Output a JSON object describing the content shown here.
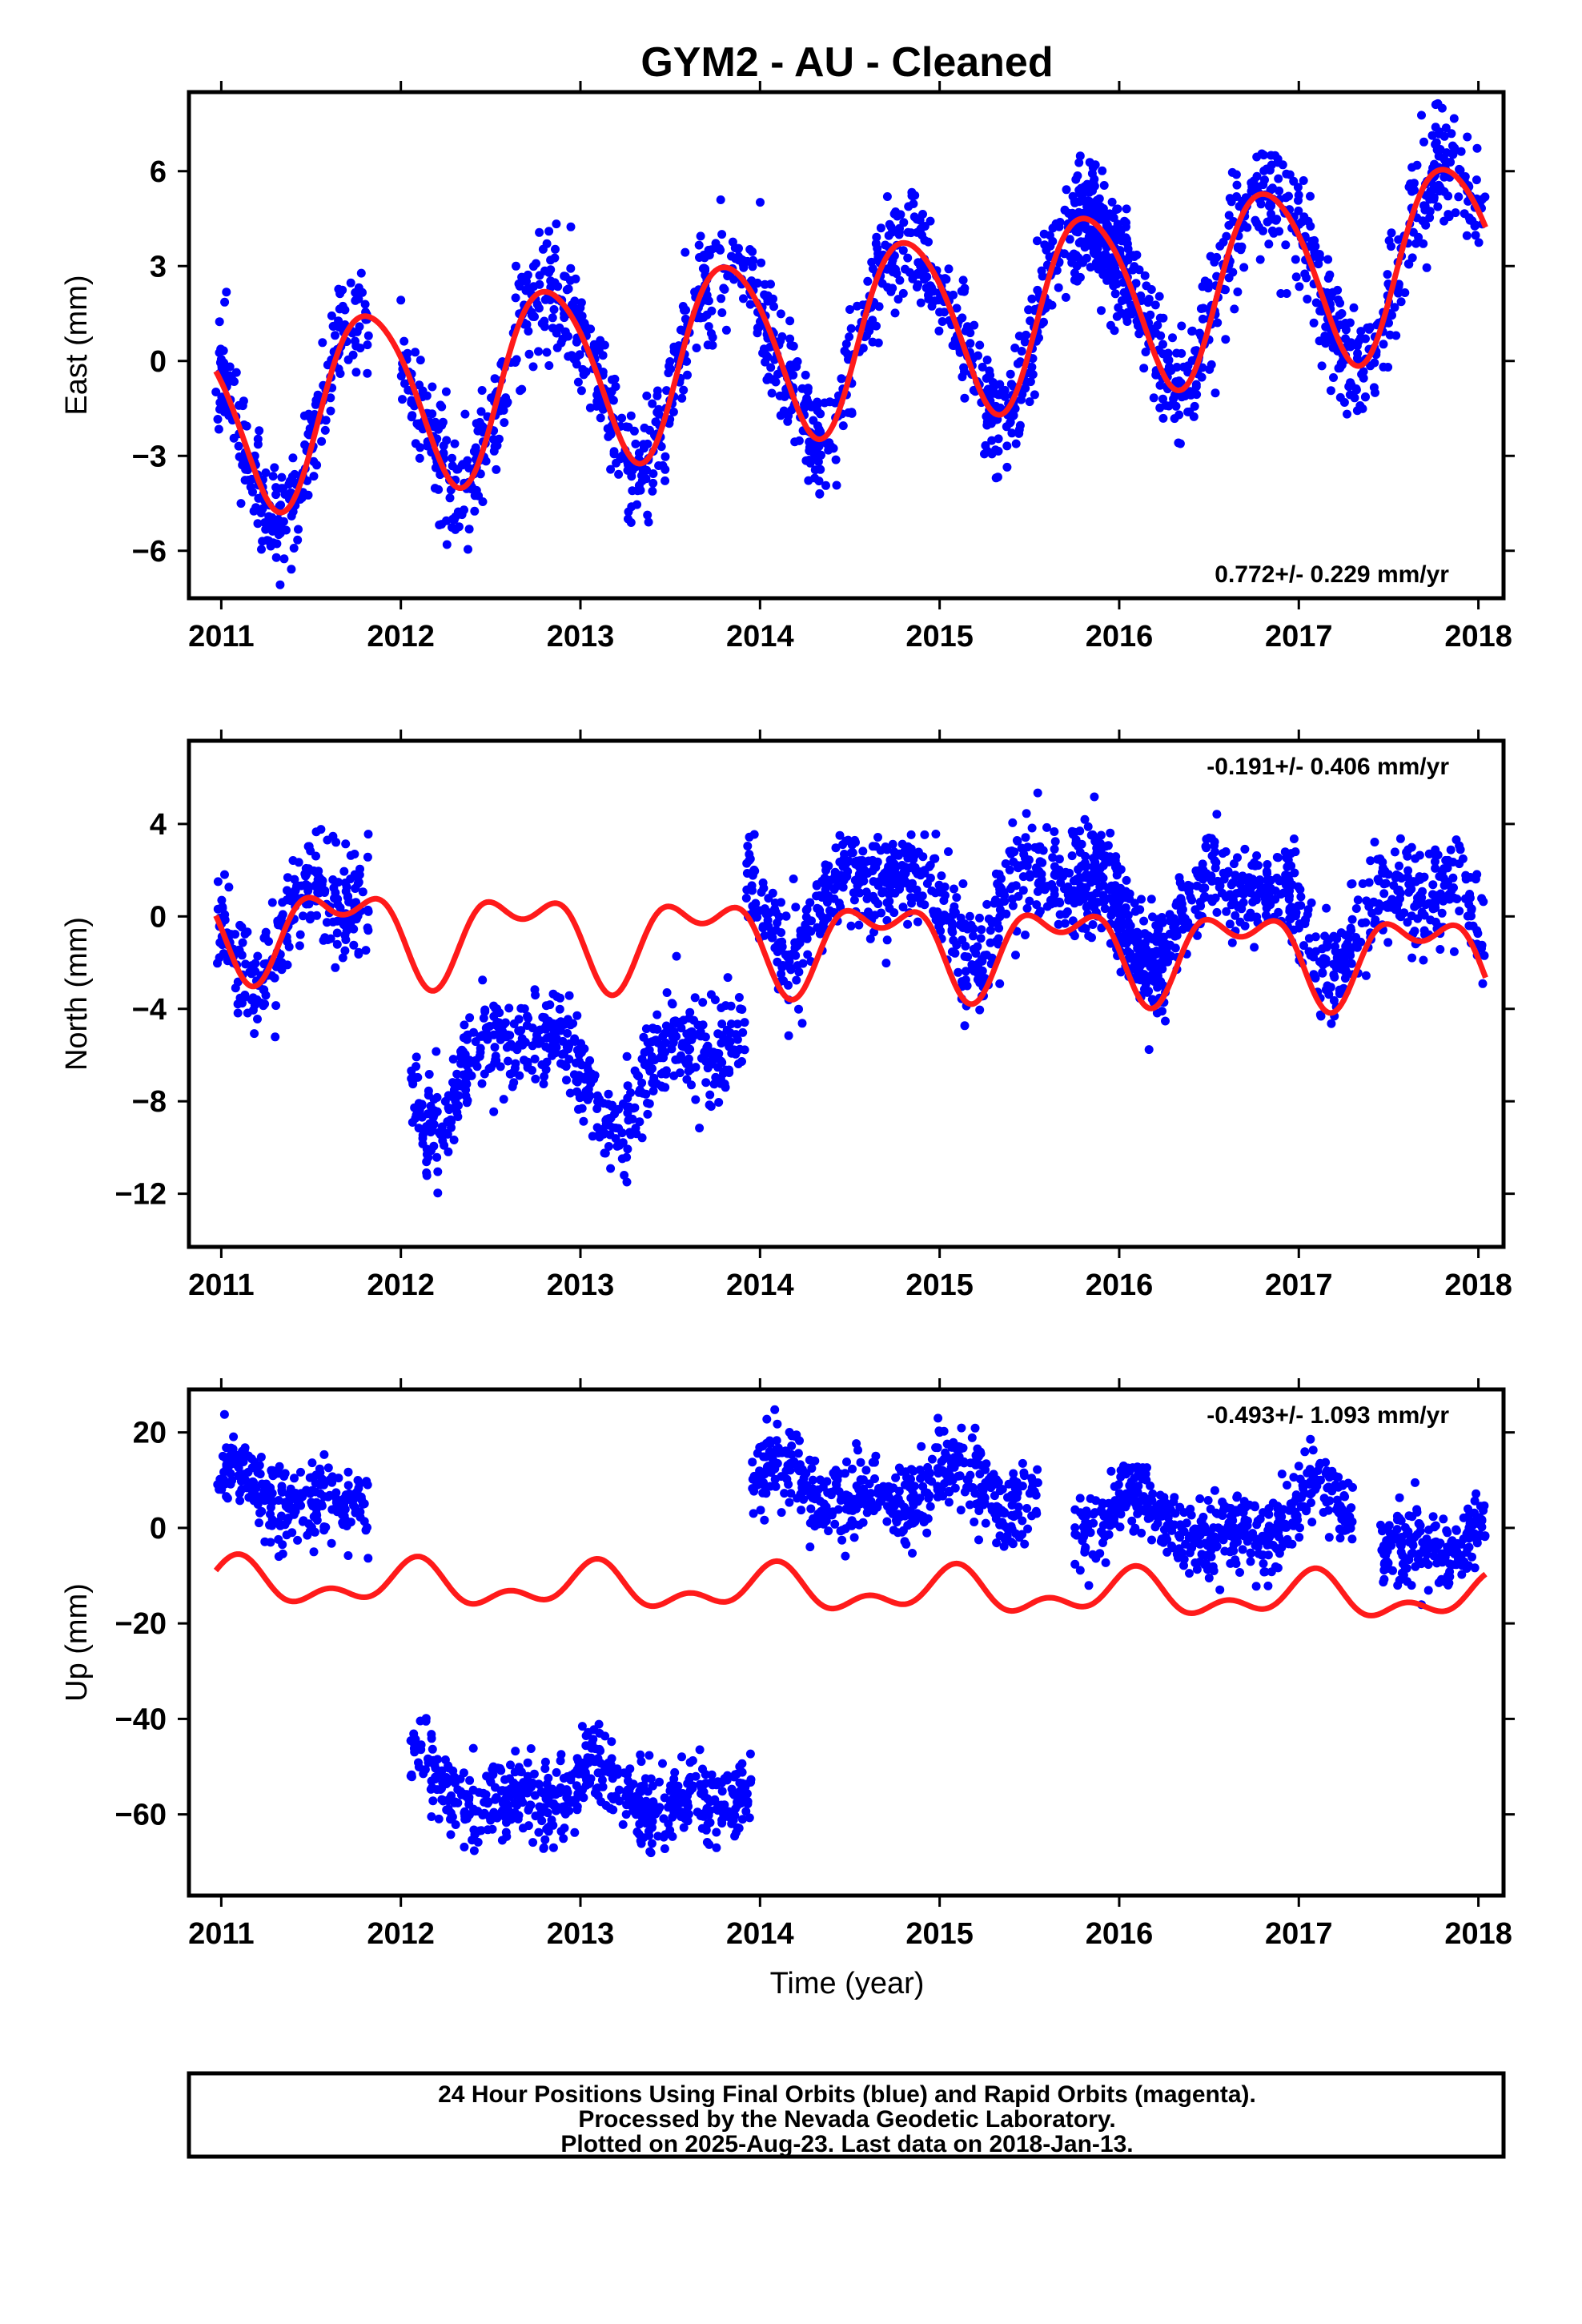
{
  "chart_data": [
    {
      "type": "scatter",
      "title": "GYM2  - AU - Cleaned",
      "xlabel": "",
      "ylabel": "East (mm)",
      "xlim": [
        2010.82,
        2018.14
      ],
      "ylim": [
        -7.5,
        8.5
      ],
      "xticks": [
        2011,
        2012,
        2013,
        2014,
        2015,
        2016,
        2017,
        2018
      ],
      "yticks": [
        -6,
        -3,
        0,
        3,
        6
      ],
      "ytick_labels": [
        "−6",
        "−3",
        "0",
        "3",
        "6"
      ],
      "rate_label": "0.772+/- 0.229 mm/yr",
      "rate_position": "bottom-right",
      "dot_color": "#0000ff",
      "fit_color": "#ff1a1a",
      "segments": [
        [
          2010.97,
          2011.82
        ],
        [
          2012.0,
          2016.05
        ],
        [
          2015.75,
          2018.04
        ]
      ],
      "points_per_year": 300,
      "model": {
        "offset": -1.9,
        "rate": 0.772,
        "t0": 2011.0,
        "annual_amp": 2.9,
        "annual_phase": 2.7,
        "semi_amp": 0.3,
        "semi_phase": 0.0
      },
      "noise": 0.9,
      "seed": 11,
      "series": [
        {
          "name": "",
          "kind": "points"
        },
        {
          "name": "",
          "kind": "fit"
        }
      ]
    },
    {
      "type": "scatter",
      "title": "",
      "xlabel": "",
      "ylabel": "North (mm)",
      "xlim": [
        2010.82,
        2018.14
      ],
      "ylim": [
        -14.3,
        7.6
      ],
      "xticks": [
        2011,
        2012,
        2013,
        2014,
        2015,
        2016,
        2017,
        2018
      ],
      "yticks": [
        -12,
        -8,
        -4,
        0,
        4
      ],
      "ytick_labels": [
        "−12",
        "−8",
        "−4",
        "0",
        "4"
      ],
      "rate_label": "-0.191+/- 0.406 mm/yr",
      "rate_position": "top-right",
      "dot_color": "#0000ff",
      "fit_color": "#ff1a1a",
      "segments": [
        [
          2010.97,
          2011.82
        ],
        [
          2012.05,
          2013.92
        ],
        [
          2013.92,
          2016.25
        ],
        [
          2015.75,
          2018.04
        ]
      ],
      "segment_offsets": [
        0.4,
        -5.8,
        1.9,
        1.6
      ],
      "points_per_year": 300,
      "model": {
        "offset": -0.4,
        "rate": -0.191,
        "t0": 2011.0,
        "annual_amp": 1.6,
        "annual_phase": 3.6,
        "semi_amp": 1.0,
        "semi_phase": 2.5
      },
      "noise": 1.1,
      "seed": 23,
      "series": [
        {
          "name": "",
          "kind": "points"
        },
        {
          "name": "",
          "kind": "fit"
        }
      ]
    },
    {
      "type": "scatter",
      "title": "",
      "xlabel": "Time (year)",
      "ylabel": "Up (mm)",
      "xlim": [
        2010.82,
        2018.14
      ],
      "ylim": [
        -77,
        29
      ],
      "xticks": [
        2011,
        2012,
        2013,
        2014,
        2015,
        2016,
        2017,
        2018
      ],
      "yticks": [
        -60,
        -40,
        -20,
        0,
        20
      ],
      "ytick_labels": [
        "−60",
        "−40",
        "−20",
        "0",
        "20"
      ],
      "rate_label": "-0.493+/- 1.093 mm/yr",
      "rate_position": "top-right",
      "dot_color": "#0000ff",
      "fit_color": "#ff1a1a",
      "segments": [
        [
          2010.97,
          2011.82
        ],
        [
          2012.05,
          2013.95
        ],
        [
          2013.95,
          2015.55
        ],
        [
          2015.75,
          2017.0
        ],
        [
          2017.0,
          2017.3
        ],
        [
          2017.45,
          2018.04
        ]
      ],
      "segment_offsets": [
        18,
        -43,
        21,
        15,
        18,
        11
      ],
      "points_per_year": 300,
      "model": {
        "offset": -11.5,
        "rate": -0.493,
        "t0": 2011.0,
        "annual_amp": 3.5,
        "annual_phase": 1.1,
        "semi_amp": 2.6,
        "semi_phase": 0.3
      },
      "noise": 4.2,
      "seed": 37,
      "series": [
        {
          "name": "",
          "kind": "points"
        },
        {
          "name": "",
          "kind": "fit"
        }
      ]
    }
  ],
  "footer": {
    "line1": "24 Hour Positions Using Final Orbits (blue) and Rapid Orbits (magenta).",
    "line2": "Processed by the Nevada Geodetic Laboratory.",
    "line3": "Plotted on 2025-Aug-23. Last data on 2018-Jan-13."
  }
}
